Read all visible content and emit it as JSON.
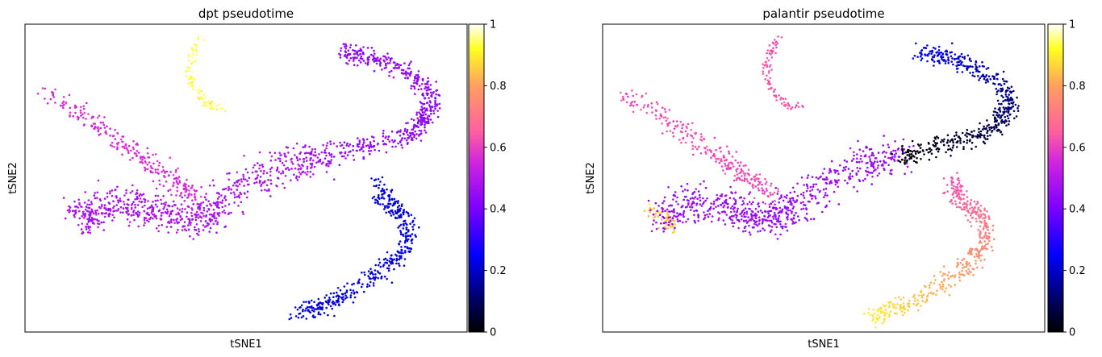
{
  "chart_data": [
    {
      "type": "scatter",
      "title": "dpt pseudotime",
      "xlabel": "tSNE1",
      "ylabel": "tSNE2",
      "colorbar": {
        "range": [
          0,
          1
        ],
        "ticks": [
          "0",
          "0.2",
          "0.4",
          "0.6",
          "0.8",
          "1"
        ],
        "colormap": "gnuplot2"
      },
      "branches": [
        {
          "branch": "top-left arc",
          "value": 0.94
        },
        {
          "branch": "left diagonal arm",
          "value": 0.56
        },
        {
          "branch": "central mass",
          "value": 0.48
        },
        {
          "branch": "upper-right arc",
          "value": 0.44
        },
        {
          "branch": "lower-right arc",
          "value": 0.22
        }
      ]
    },
    {
      "type": "scatter",
      "title": "palantir pseudotime",
      "xlabel": "tSNE1",
      "ylabel": "tSNE2",
      "colorbar": {
        "range": [
          0,
          1
        ],
        "ticks": [
          "0",
          "0.2",
          "0.4",
          "0.6",
          "0.8",
          "1"
        ],
        "colormap": "gnuplot2"
      },
      "branches": [
        {
          "branch": "top-left arc",
          "value": 0.64
        },
        {
          "branch": "left diagonal arm",
          "value": 0.62
        },
        {
          "branch": "lower-left tip",
          "value": 0.85
        },
        {
          "branch": "central mass",
          "value": 0.45
        },
        {
          "branch": "upper-right arc",
          "value": 0.12
        },
        {
          "branch": "lower-right arc",
          "value": 0.65
        }
      ]
    }
  ]
}
